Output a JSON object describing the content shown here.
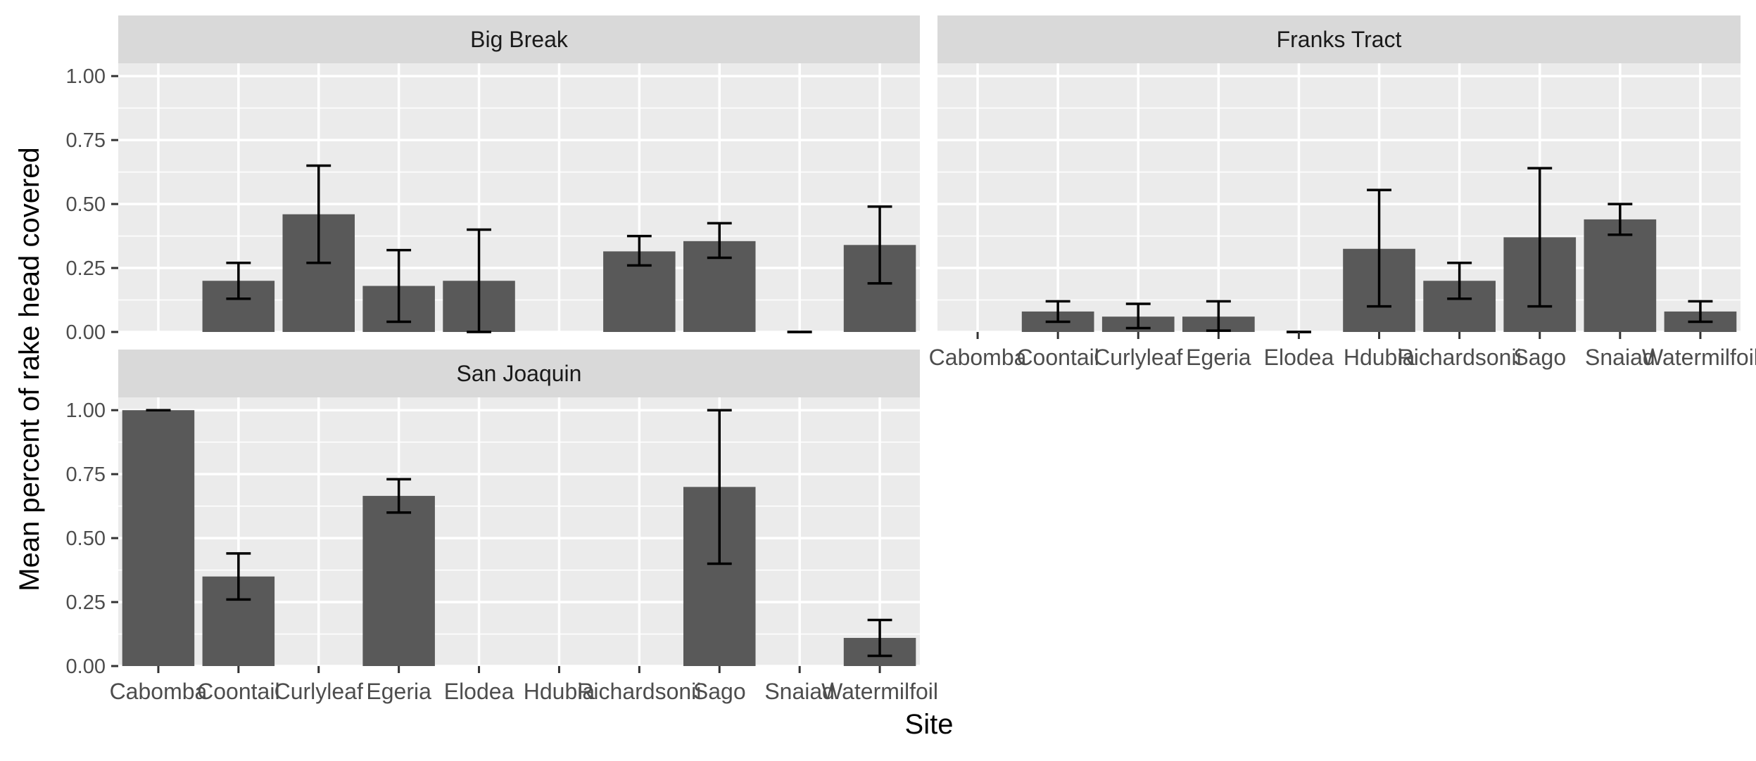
{
  "chart_data": {
    "type": "bar",
    "facet_wrap": true,
    "x_label": "Site",
    "y_label": "Mean percent of rake head covered",
    "categories": [
      "Cabomba",
      "Coontail",
      "Curlyleaf",
      "Egeria",
      "Elodea",
      "Hdubia",
      "Richardsonii",
      "Sago",
      "Snaiad",
      "Watermilfoil"
    ],
    "y_range": [
      0,
      1.05
    ],
    "y_ticks": [
      0.0,
      0.25,
      0.5,
      0.75,
      1.0
    ],
    "y_tick_labels": [
      "0.00",
      "0.25",
      "0.50",
      "0.75",
      "1.00"
    ],
    "panels": [
      {
        "title": "Big Break",
        "bars": [
          {
            "category": "Coontail",
            "value": 0.2,
            "lo": 0.13,
            "hi": 0.27
          },
          {
            "category": "Curlyleaf",
            "value": 0.46,
            "lo": 0.27,
            "hi": 0.65
          },
          {
            "category": "Egeria",
            "value": 0.18,
            "lo": 0.04,
            "hi": 0.32
          },
          {
            "category": "Elodea",
            "value": 0.2,
            "lo": 0.0,
            "hi": 0.4
          },
          {
            "category": "Richardsonii",
            "value": 0.315,
            "lo": 0.26,
            "hi": 0.375
          },
          {
            "category": "Sago",
            "value": 0.355,
            "lo": 0.29,
            "hi": 0.425
          },
          {
            "category": "Snaiad",
            "value": 0.0,
            "lo": 0.0,
            "hi": 0.0
          },
          {
            "category": "Watermilfoil",
            "value": 0.34,
            "lo": 0.19,
            "hi": 0.49
          }
        ]
      },
      {
        "title": "Franks Tract",
        "bars": [
          {
            "category": "Coontail",
            "value": 0.08,
            "lo": 0.04,
            "hi": 0.12
          },
          {
            "category": "Curlyleaf",
            "value": 0.06,
            "lo": 0.015,
            "hi": 0.11
          },
          {
            "category": "Egeria",
            "value": 0.06,
            "lo": 0.005,
            "hi": 0.12
          },
          {
            "category": "Elodea",
            "value": 0.0,
            "lo": 0.0,
            "hi": 0.0
          },
          {
            "category": "Hdubia",
            "value": 0.325,
            "lo": 0.1,
            "hi": 0.555
          },
          {
            "category": "Richardsonii",
            "value": 0.2,
            "lo": 0.13,
            "hi": 0.27
          },
          {
            "category": "Sago",
            "value": 0.37,
            "lo": 0.1,
            "hi": 0.64
          },
          {
            "category": "Snaiad",
            "value": 0.44,
            "lo": 0.38,
            "hi": 0.5
          },
          {
            "category": "Watermilfoil",
            "value": 0.08,
            "lo": 0.04,
            "hi": 0.12
          }
        ]
      },
      {
        "title": "San Joaquin",
        "bars": [
          {
            "category": "Cabomba",
            "value": 1.0,
            "lo": 1.0,
            "hi": 1.0
          },
          {
            "category": "Coontail",
            "value": 0.35,
            "lo": 0.26,
            "hi": 0.44
          },
          {
            "category": "Egeria",
            "value": 0.665,
            "lo": 0.6,
            "hi": 0.73
          },
          {
            "category": "Sago",
            "value": 0.7,
            "lo": 0.4,
            "hi": 1.0
          },
          {
            "category": "Watermilfoil",
            "value": 0.11,
            "lo": 0.04,
            "hi": 0.18
          }
        ]
      }
    ],
    "colors": {
      "panel_bg": "#ebebeb",
      "strip_bg": "#d9d9d9",
      "grid": "#ffffff",
      "bar": "#595959",
      "errorbar": "#000000",
      "axis_text": "#4d4d4d",
      "strip_text": "#1a1a1a",
      "title_text": "#000000"
    }
  }
}
